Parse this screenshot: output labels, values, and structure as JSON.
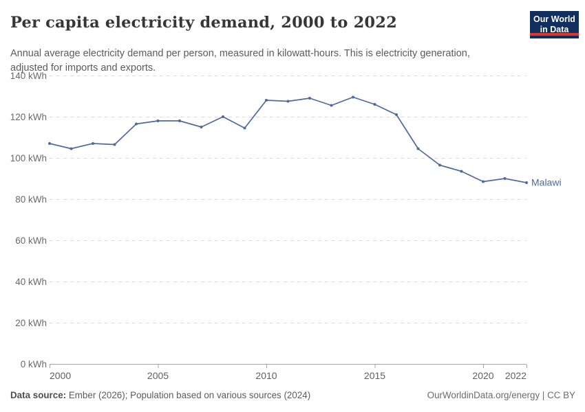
{
  "header": {
    "title": "Per capita electricity demand, 2000 to 2022",
    "subtitle": "Annual average electricity demand per person, measured in kilowatt-hours. This is electricity generation, adjusted for imports and exports."
  },
  "logo": {
    "line1": "Our World",
    "line2": "in Data",
    "bg_color": "#102e5e",
    "bar_color": "#dd352a"
  },
  "chart_data": {
    "type": "line",
    "title": "Per capita electricity demand, 2000 to 2022",
    "xlabel": "",
    "ylabel": "kWh",
    "unit": "kWh",
    "x": [
      2000,
      2001,
      2002,
      2003,
      2004,
      2005,
      2006,
      2007,
      2008,
      2009,
      2010,
      2011,
      2012,
      2013,
      2014,
      2015,
      2016,
      2017,
      2018,
      2019,
      2020,
      2021,
      2022
    ],
    "series": [
      {
        "name": "Malawi",
        "color": "#4C6A9C",
        "values": [
          107,
          104.5,
          107,
          106.5,
          116.5,
          118,
          118,
          115,
          120,
          114.5,
          128,
          127.5,
          129,
          125.5,
          129.5,
          126,
          121,
          104.5,
          96.5,
          93.5,
          88.5,
          90,
          88
        ]
      }
    ],
    "ylim": [
      0,
      140
    ],
    "xlim": [
      2000,
      2022
    ],
    "yticks": [
      0,
      20,
      40,
      60,
      80,
      100,
      120,
      140
    ],
    "ytick_suffix": " kWh",
    "xticks": [
      2000,
      2005,
      2010,
      2015,
      2020,
      2022
    ],
    "grid": true,
    "grid_style": "dashed",
    "legend_position": "end-of-line",
    "colors": {
      "gridline": "#dcdcdc",
      "axis": "#a5a5a5",
      "y_tick_label": "#696969",
      "x_tick_label": "#5f5f5f"
    }
  },
  "footer": {
    "source_label": "Data source:",
    "source_text": " Ember (2026); Population based on various sources (2024)",
    "link_text": "OurWorldinData.org/energy | CC BY"
  }
}
